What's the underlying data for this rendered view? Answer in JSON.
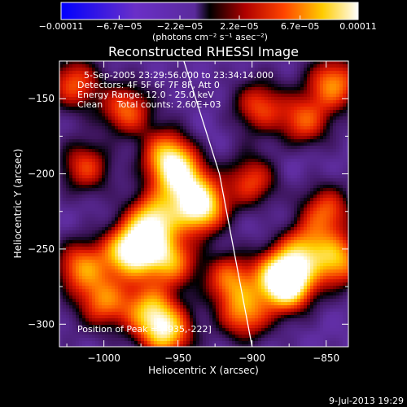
{
  "chart_data": {
    "type": "heatmap",
    "title": "Reconstructed RHESSI Image",
    "xlabel": "Heliocentric X (arcsec)",
    "ylabel": "Heliocentric Y (arcsec)",
    "xlim": [
      -1030,
      -835
    ],
    "ylim": [
      -315,
      -125
    ],
    "xticks": [
      -1000,
      -950,
      -900,
      -850
    ],
    "xtick_labels": [
      "−1000",
      "−950",
      "−900",
      "−850"
    ],
    "yticks": [
      -150,
      -200,
      -250,
      -300
    ],
    "ytick_labels": [
      "−150",
      "−200",
      "−250",
      "−300"
    ],
    "colorbar": {
      "ticks": [
        -0.00011,
        -6.7e-05,
        -2.2e-05,
        2.2e-05,
        6.7e-05,
        0.00011
      ],
      "tick_labels": [
        "−0.00011",
        "−6.7e−05",
        "−2.2e−05",
        "2.2e−05",
        "6.7e−05",
        "0.00011"
      ],
      "units_label": "(photons cm⁻² s⁻¹ asec⁻²)",
      "range": [
        -0.00011,
        0.00011
      ]
    },
    "annotations": [
      "5-Sep-2005 23:29:56.000 to 23:34:14.000",
      "Detectors: 4F 5F 6F 7F 8F, Att 0",
      "Energy Range: 12.0 - 25.0 keV",
      "Clean     Total counts: 2.60E+03"
    ],
    "peak_label": "Position of Peak = [-935,-222]",
    "peak_position": [
      -935,
      -222
    ],
    "timestamp": "9-Jul-2013 19:29",
    "limb_line": [
      [
        -946,
        -125
      ],
      [
        -922,
        -200
      ],
      [
        -900,
        -315
      ]
    ],
    "sources": [
      {
        "x": -935,
        "y": -222,
        "amp": 1.0
      },
      {
        "x": -948,
        "y": -203,
        "amp": 0.65
      },
      {
        "x": -957,
        "y": -188,
        "amp": 0.62
      },
      {
        "x": -966,
        "y": -230,
        "amp": 0.7
      },
      {
        "x": -975,
        "y": -248,
        "amp": 0.55
      },
      {
        "x": -955,
        "y": -258,
        "amp": 0.55
      },
      {
        "x": -985,
        "y": -253,
        "amp": 0.5
      },
      {
        "x": -1015,
        "y": -262,
        "amp": 0.5
      },
      {
        "x": -1000,
        "y": -285,
        "amp": 0.45
      },
      {
        "x": -970,
        "y": -290,
        "amp": 0.5
      },
      {
        "x": -958,
        "y": -305,
        "amp": 0.75
      },
      {
        "x": -1012,
        "y": -195,
        "amp": 0.35
      },
      {
        "x": -1020,
        "y": -140,
        "amp": 0.4
      },
      {
        "x": -985,
        "y": -158,
        "amp": 0.45
      },
      {
        "x": -880,
        "y": -268,
        "amp": 0.8
      },
      {
        "x": -875,
        "y": -275,
        "amp": 0.55
      },
      {
        "x": -865,
        "y": -250,
        "amp": 0.45
      },
      {
        "x": -850,
        "y": -225,
        "amp": 0.4
      },
      {
        "x": -842,
        "y": -258,
        "amp": 0.6
      },
      {
        "x": -905,
        "y": -293,
        "amp": 0.5
      },
      {
        "x": -900,
        "y": -205,
        "amp": 0.35
      },
      {
        "x": -845,
        "y": -140,
        "amp": 0.55
      },
      {
        "x": -865,
        "y": -165,
        "amp": 0.4
      },
      {
        "x": -895,
        "y": -155,
        "amp": 0.35
      },
      {
        "x": -915,
        "y": -270,
        "amp": 0.45
      },
      {
        "x": -995,
        "y": -180,
        "amp": -0.35
      },
      {
        "x": -1000,
        "y": -232,
        "amp": -0.3
      },
      {
        "x": -932,
        "y": -175,
        "amp": -0.35
      },
      {
        "x": -885,
        "y": -230,
        "amp": -0.35
      },
      {
        "x": -870,
        "y": -190,
        "amp": -0.35
      },
      {
        "x": -920,
        "y": -250,
        "amp": -0.3
      },
      {
        "x": -850,
        "y": -300,
        "amp": -0.3
      },
      {
        "x": -1025,
        "y": -300,
        "amp": -0.25
      },
      {
        "x": -940,
        "y": -150,
        "amp": -0.25
      },
      {
        "x": -908,
        "y": -180,
        "amp": -0.25
      }
    ],
    "grid": false
  }
}
